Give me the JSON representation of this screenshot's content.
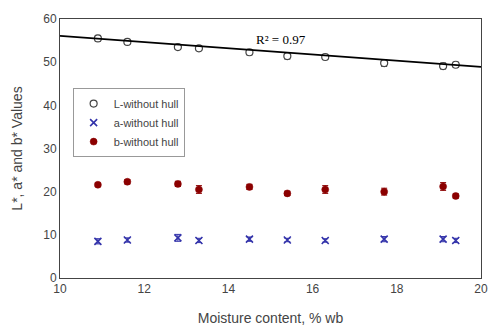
{
  "chart_data": {
    "type": "scatter",
    "title": "",
    "x_label": "Moisture content, % wb",
    "y_label": "L*, a* and b* Values",
    "xlim": [
      10,
      20
    ],
    "ylim": [
      0,
      60
    ],
    "xticks": [
      10,
      12,
      14,
      16,
      18,
      20
    ],
    "yticks": [
      0,
      10,
      20,
      30,
      40,
      50,
      60
    ],
    "grid": false,
    "legend": "center left",
    "annotations": [
      {
        "text": "R² = 0.97",
        "x": 14.6,
        "y": 57.5
      }
    ],
    "series": [
      {
        "name": "L-without hull",
        "type": "scatter",
        "marker": "circle-open",
        "color": "#444444",
        "x": [
          10.9,
          11.6,
          12.8,
          13.3,
          14.5,
          15.4,
          16.3,
          17.7,
          19.1,
          19.4
        ],
        "values": [
          55.5,
          54.7,
          53.5,
          53.2,
          52.3,
          51.4,
          51.2,
          49.8,
          49.1,
          49.4
        ],
        "error": [
          0.7,
          0.5,
          0.5,
          0.5,
          0.6,
          0.7,
          0.6,
          0.8,
          0.7,
          0.6
        ]
      },
      {
        "name": "a-without hull",
        "type": "scatter",
        "marker": "x",
        "color": "#3333aa",
        "x": [
          10.9,
          11.6,
          12.8,
          13.3,
          14.5,
          15.4,
          16.3,
          17.7,
          19.1,
          19.4
        ],
        "values": [
          8.5,
          8.8,
          9.3,
          8.7,
          9.0,
          8.8,
          8.7,
          9.0,
          9.0,
          8.7
        ],
        "error": [
          0.6,
          0.5,
          0.8,
          0.5,
          0.5,
          0.4,
          0.4,
          0.6,
          0.6,
          0.5
        ]
      },
      {
        "name": "b-without hull",
        "type": "scatter",
        "marker": "circle",
        "color": "#8B0000",
        "x": [
          10.9,
          11.6,
          12.8,
          13.3,
          14.5,
          15.4,
          16.3,
          17.7,
          19.1,
          19.4
        ],
        "values": [
          21.6,
          22.3,
          21.8,
          20.5,
          21.1,
          19.6,
          20.5,
          20.0,
          21.2,
          19.0
        ],
        "error": [
          0.4,
          0.5,
          0.6,
          0.9,
          0.6,
          0.5,
          0.9,
          0.8,
          0.9,
          0.5
        ]
      },
      {
        "type": "line",
        "line_style": "solid",
        "color": "#000000",
        "x": [
          10,
          20
        ],
        "values": [
          56.1,
          48.9
        ]
      }
    ]
  }
}
